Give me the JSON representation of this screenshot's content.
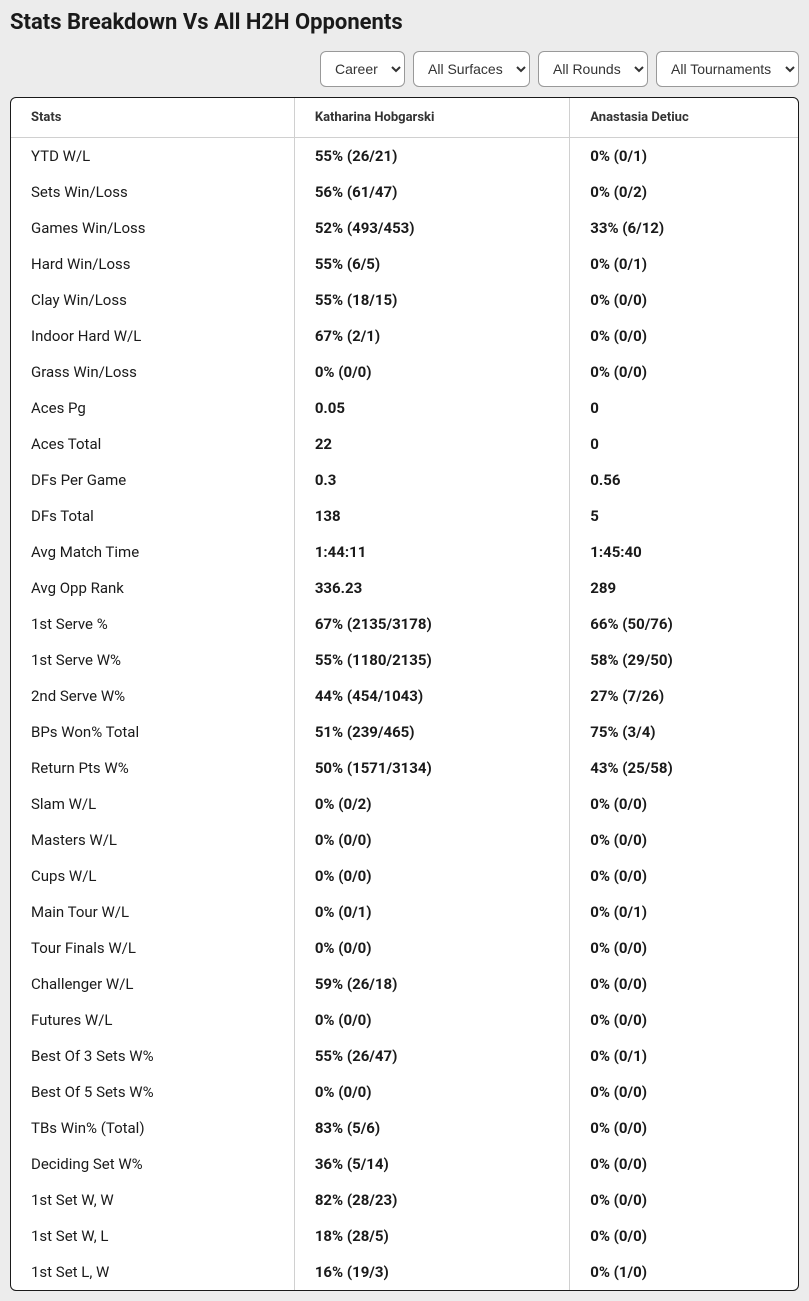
{
  "title": "Stats Breakdown Vs All H2H Opponents",
  "filters": {
    "period": "Career",
    "surface": "All Surfaces",
    "round": "All Rounds",
    "tournament": "All Tournaments"
  },
  "columns": {
    "stats": "Stats",
    "player1": "Katharina Hobgarski",
    "player2": "Anastasia Detiuc"
  },
  "rows": [
    {
      "label": "YTD W/L",
      "p1": "55% (26/21)",
      "p2": "0% (0/1)"
    },
    {
      "label": "Sets Win/Loss",
      "p1": "56% (61/47)",
      "p2": "0% (0/2)"
    },
    {
      "label": "Games Win/Loss",
      "p1": "52% (493/453)",
      "p2": "33% (6/12)"
    },
    {
      "label": "Hard Win/Loss",
      "p1": "55% (6/5)",
      "p2": "0% (0/1)"
    },
    {
      "label": "Clay Win/Loss",
      "p1": "55% (18/15)",
      "p2": "0% (0/0)"
    },
    {
      "label": "Indoor Hard W/L",
      "p1": "67% (2/1)",
      "p2": "0% (0/0)"
    },
    {
      "label": "Grass Win/Loss",
      "p1": "0% (0/0)",
      "p2": "0% (0/0)"
    },
    {
      "label": "Aces Pg",
      "p1": "0.05",
      "p2": "0"
    },
    {
      "label": "Aces Total",
      "p1": "22",
      "p2": "0"
    },
    {
      "label": "DFs Per Game",
      "p1": "0.3",
      "p2": "0.56"
    },
    {
      "label": "DFs Total",
      "p1": "138",
      "p2": "5"
    },
    {
      "label": "Avg Match Time",
      "p1": "1:44:11",
      "p2": "1:45:40"
    },
    {
      "label": "Avg Opp Rank",
      "p1": "336.23",
      "p2": "289"
    },
    {
      "label": "1st Serve %",
      "p1": "67% (2135/3178)",
      "p2": "66% (50/76)"
    },
    {
      "label": "1st Serve W%",
      "p1": "55% (1180/2135)",
      "p2": "58% (29/50)"
    },
    {
      "label": "2nd Serve W%",
      "p1": "44% (454/1043)",
      "p2": "27% (7/26)"
    },
    {
      "label": "BPs Won% Total",
      "p1": "51% (239/465)",
      "p2": "75% (3/4)"
    },
    {
      "label": "Return Pts W%",
      "p1": "50% (1571/3134)",
      "p2": "43% (25/58)"
    },
    {
      "label": "Slam W/L",
      "p1": "0% (0/2)",
      "p2": "0% (0/0)"
    },
    {
      "label": "Masters W/L",
      "p1": "0% (0/0)",
      "p2": "0% (0/0)"
    },
    {
      "label": "Cups W/L",
      "p1": "0% (0/0)",
      "p2": "0% (0/0)"
    },
    {
      "label": "Main Tour W/L",
      "p1": "0% (0/1)",
      "p2": "0% (0/1)"
    },
    {
      "label": "Tour Finals W/L",
      "p1": "0% (0/0)",
      "p2": "0% (0/0)"
    },
    {
      "label": "Challenger W/L",
      "p1": "59% (26/18)",
      "p2": "0% (0/0)"
    },
    {
      "label": "Futures W/L",
      "p1": "0% (0/0)",
      "p2": "0% (0/0)"
    },
    {
      "label": "Best Of 3 Sets W%",
      "p1": "55% (26/47)",
      "p2": "0% (0/1)"
    },
    {
      "label": "Best Of 5 Sets W%",
      "p1": "0% (0/0)",
      "p2": "0% (0/0)"
    },
    {
      "label": "TBs Win% (Total)",
      "p1": "83% (5/6)",
      "p2": "0% (0/0)"
    },
    {
      "label": "Deciding Set W%",
      "p1": "36% (5/14)",
      "p2": "0% (0/0)"
    },
    {
      "label": "1st Set W, W",
      "p1": "82% (28/23)",
      "p2": "0% (0/0)"
    },
    {
      "label": "1st Set W, L",
      "p1": "18% (28/5)",
      "p2": "0% (0/0)"
    },
    {
      "label": "1st Set L, W",
      "p1": "16% (19/3)",
      "p2": "0% (1/0)"
    }
  ]
}
